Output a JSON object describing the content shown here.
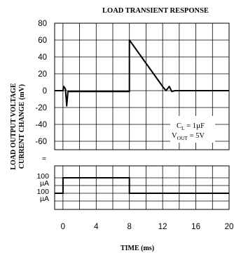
{
  "chart_data": {
    "type": "line",
    "title": "LOAD TRANSIENT RESPONSE",
    "xlabel": "TIME (ms)",
    "ylabel_line1": "LOAD OUTPUT VOLTAGE",
    "ylabel_line2": "CURRENT CHANGE (mV)",
    "x_ticks": [
      "0",
      "4",
      "8",
      "12",
      "16",
      "20"
    ],
    "xlim": [
      -1,
      20
    ],
    "voltage_axis": {
      "ticks": [
        "80",
        "60",
        "40",
        "20",
        "0",
        "-20",
        "-40",
        "-60"
      ],
      "ylim": [
        -70,
        80
      ]
    },
    "current_axis": {
      "tick_labels": [
        [
          "100",
          "µA"
        ],
        [
          "100",
          "µA"
        ]
      ],
      "break_symbol": "≈"
    },
    "annotation": {
      "line1_main": "C",
      "line1_sub": "L",
      "line1_rest": " = 1µF",
      "line2_main": "V",
      "line2_sub": "OUT",
      "line2_rest": " = 5V"
    },
    "series": [
      {
        "x": [
          -1,
          0,
          0.1,
          0.3,
          0.45,
          0.6,
          1,
          8,
          8,
          12,
          12.4,
          12.8,
          13.1,
          13.5,
          20
        ],
        "values": [
          0,
          0,
          5,
          2,
          -18,
          -1,
          -1,
          -1,
          60,
          5,
          0,
          5,
          -1,
          0,
          0
        ]
      },
      {
        "x": [
          -1,
          0,
          0,
          8,
          8,
          20
        ],
        "values": [
          0,
          0,
          1,
          1,
          0,
          0
        ]
      }
    ]
  }
}
